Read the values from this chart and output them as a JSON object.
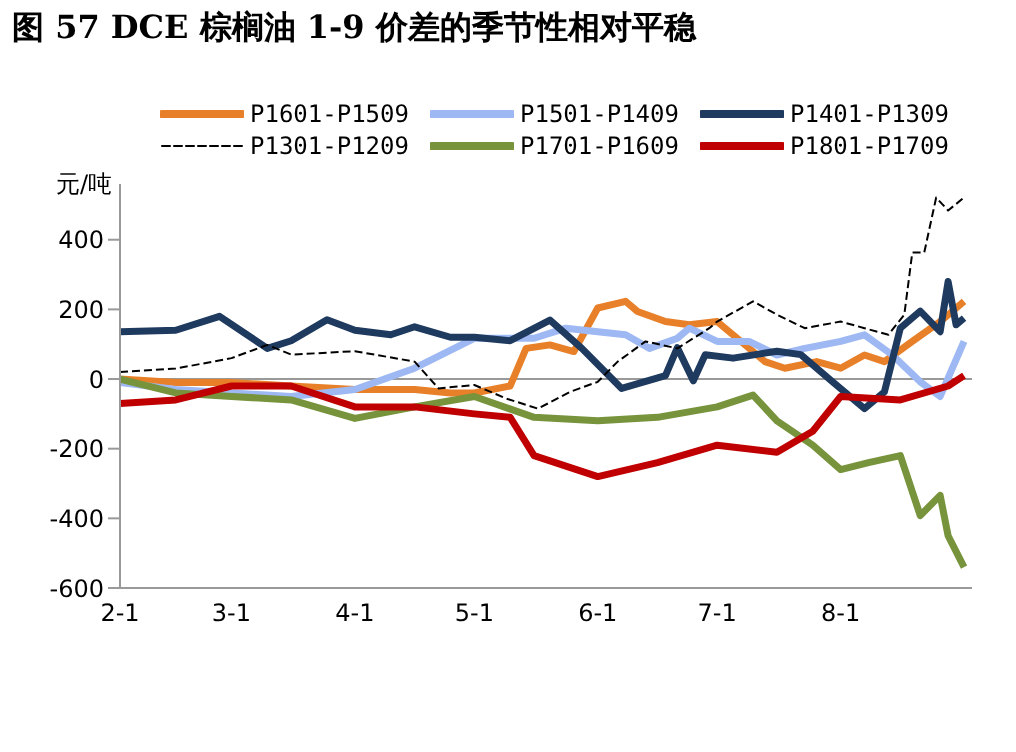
{
  "chart_data": {
    "type": "line",
    "title": "图 57 DCE 棕榈油 1-9 价差的季节性相对平稳",
    "ylabel": "元/吨",
    "xlim": [
      "--02-01",
      "--09-03"
    ],
    "xticks": [
      {
        "value": "--02-01",
        "label": "2-1"
      },
      {
        "value": "--03-01",
        "label": "3-1"
      },
      {
        "value": "--04-01",
        "label": "4-1"
      },
      {
        "value": "--05-01",
        "label": "5-1"
      },
      {
        "value": "--06-01",
        "label": "6-1"
      },
      {
        "value": "--07-01",
        "label": "7-1"
      },
      {
        "value": "--08-01",
        "label": "8-1"
      }
    ],
    "ylim": [
      -600,
      560
    ],
    "yticks": [
      -600,
      -400,
      -200,
      0,
      200,
      400
    ],
    "grid": false,
    "legend": "top",
    "marker": "none",
    "ref_lines": [
      {
        "axis": "y",
        "value": 0,
        "color": "#999999"
      }
    ],
    "series": [
      {
        "name": "P1601-P1509",
        "color": "#e8802a",
        "x": [
          "--02-01",
          "--02-15",
          "--03-01",
          "--03-16",
          "--04-01",
          "--04-16",
          "--04-25",
          "--05-01",
          "--05-10",
          "--05-14",
          "--05-20",
          "--05-26",
          "--06-01",
          "--06-08",
          "--06-11",
          "--06-18",
          "--06-24",
          "--07-01",
          "--07-08",
          "--07-13",
          "--07-18",
          "--07-26",
          "--08-01",
          "--08-07",
          "--08-12",
          "--08-19",
          "--08-26",
          "--09-01"
        ],
        "values": [
          0,
          -10,
          -10,
          -20,
          -30,
          -30,
          -40,
          -40,
          -20,
          88,
          98,
          79,
          204,
          223,
          194,
          165,
          156,
          165,
          98,
          50,
          31,
          50,
          31,
          69,
          50,
          108,
          165,
          223
        ]
      },
      {
        "name": "P1501-P1409",
        "color": "#9db8f2",
        "x": [
          "--02-01",
          "--02-15",
          "--03-01",
          "--03-16",
          "--04-01",
          "--04-16",
          "--05-01",
          "--05-16",
          "--05-24",
          "--06-01",
          "--06-08",
          "--06-14",
          "--06-21",
          "--06-24",
          "--07-01",
          "--07-09",
          "--07-16",
          "--07-23",
          "--08-01",
          "--08-07",
          "--08-14",
          "--08-21",
          "--08-26",
          "--09-01"
        ],
        "values": [
          -10,
          -30,
          -40,
          -50,
          -30,
          31,
          117,
          117,
          146,
          136,
          127,
          88,
          117,
          146,
          108,
          108,
          69,
          88,
          108,
          127,
          69,
          -8,
          -50,
          108
        ]
      },
      {
        "name": "P1401-P1309",
        "color": "#1f3a5f",
        "x": [
          "--02-01",
          "--02-15",
          "--02-26",
          "--03-10",
          "--03-16",
          "--03-25",
          "--04-01",
          "--04-10",
          "--04-16",
          "--04-25",
          "--05-01",
          "--05-10",
          "--05-20",
          "--05-28",
          "--06-07",
          "--06-18",
          "--06-21",
          "--06-25",
          "--06-28",
          "--07-05",
          "--07-16",
          "--07-22",
          "--07-30",
          "--08-07",
          "--08-12",
          "--08-16",
          "--08-21",
          "--08-26",
          "--08-28",
          "--08-30",
          "--09-01"
        ],
        "values": [
          136,
          140,
          180,
          88,
          110,
          170,
          140,
          127,
          150,
          120,
          120,
          110,
          169,
          88,
          -27,
          10,
          90,
          -5,
          70,
          60,
          80,
          70,
          -8,
          -85,
          -37,
          146,
          195,
          136,
          280,
          156,
          175
        ]
      },
      {
        "name": "P1301-P1209",
        "color": "#000000",
        "line_style": "dashed",
        "x": [
          "--02-01",
          "--02-15",
          "--03-01",
          "--03-10",
          "--03-16",
          "--04-01",
          "--04-16",
          "--04-22",
          "--05-01",
          "--05-09",
          "--05-17",
          "--05-25",
          "--06-01",
          "--06-06",
          "--06-13",
          "--06-21",
          "--06-29",
          "--07-01",
          "--07-10",
          "--07-16",
          "--07-23",
          "--08-01",
          "--08-07",
          "--08-13",
          "--08-17",
          "--08-19",
          "--08-22",
          "--08-25",
          "--08-28",
          "--09-01"
        ],
        "values": [
          20,
          30,
          60,
          98,
          70,
          80,
          50,
          -27,
          -17,
          -56,
          -85,
          -37,
          -8,
          50,
          108,
          88,
          146,
          165,
          223,
          185,
          146,
          165,
          146,
          127,
          185,
          363,
          363,
          521,
          484,
          521
        ]
      },
      {
        "name": "P1701-P1609",
        "color": "#77933c",
        "x": [
          "--02-01",
          "--02-15",
          "--03-01",
          "--03-16",
          "--04-01",
          "--04-16",
          "--05-01",
          "--05-16",
          "--06-01",
          "--06-16",
          "--07-01",
          "--07-10",
          "--07-16",
          "--07-25",
          "--08-01",
          "--08-08",
          "--08-16",
          "--08-21",
          "--08-26",
          "--08-28",
          "--09-01"
        ],
        "values": [
          0,
          -40,
          -50,
          -60,
          -113,
          -80,
          -50,
          -110,
          -120,
          -110,
          -80,
          -46,
          -120,
          -190,
          -260,
          -240,
          -220,
          -392,
          -334,
          -450,
          -540
        ]
      },
      {
        "name": "P1801-P1709",
        "color": "#c00000",
        "x": [
          "--02-01",
          "--02-15",
          "--03-01",
          "--03-16",
          "--04-01",
          "--04-16",
          "--05-01",
          "--05-10",
          "--05-16",
          "--06-01",
          "--06-16",
          "--07-01",
          "--07-16",
          "--07-25",
          "--08-01",
          "--08-16",
          "--08-28",
          "--09-01"
        ],
        "values": [
          -70,
          -60,
          -20,
          -20,
          -80,
          -80,
          -100,
          -110,
          -220,
          -280,
          -240,
          -190,
          -210,
          -150,
          -50,
          -60,
          -20,
          10
        ]
      }
    ]
  }
}
